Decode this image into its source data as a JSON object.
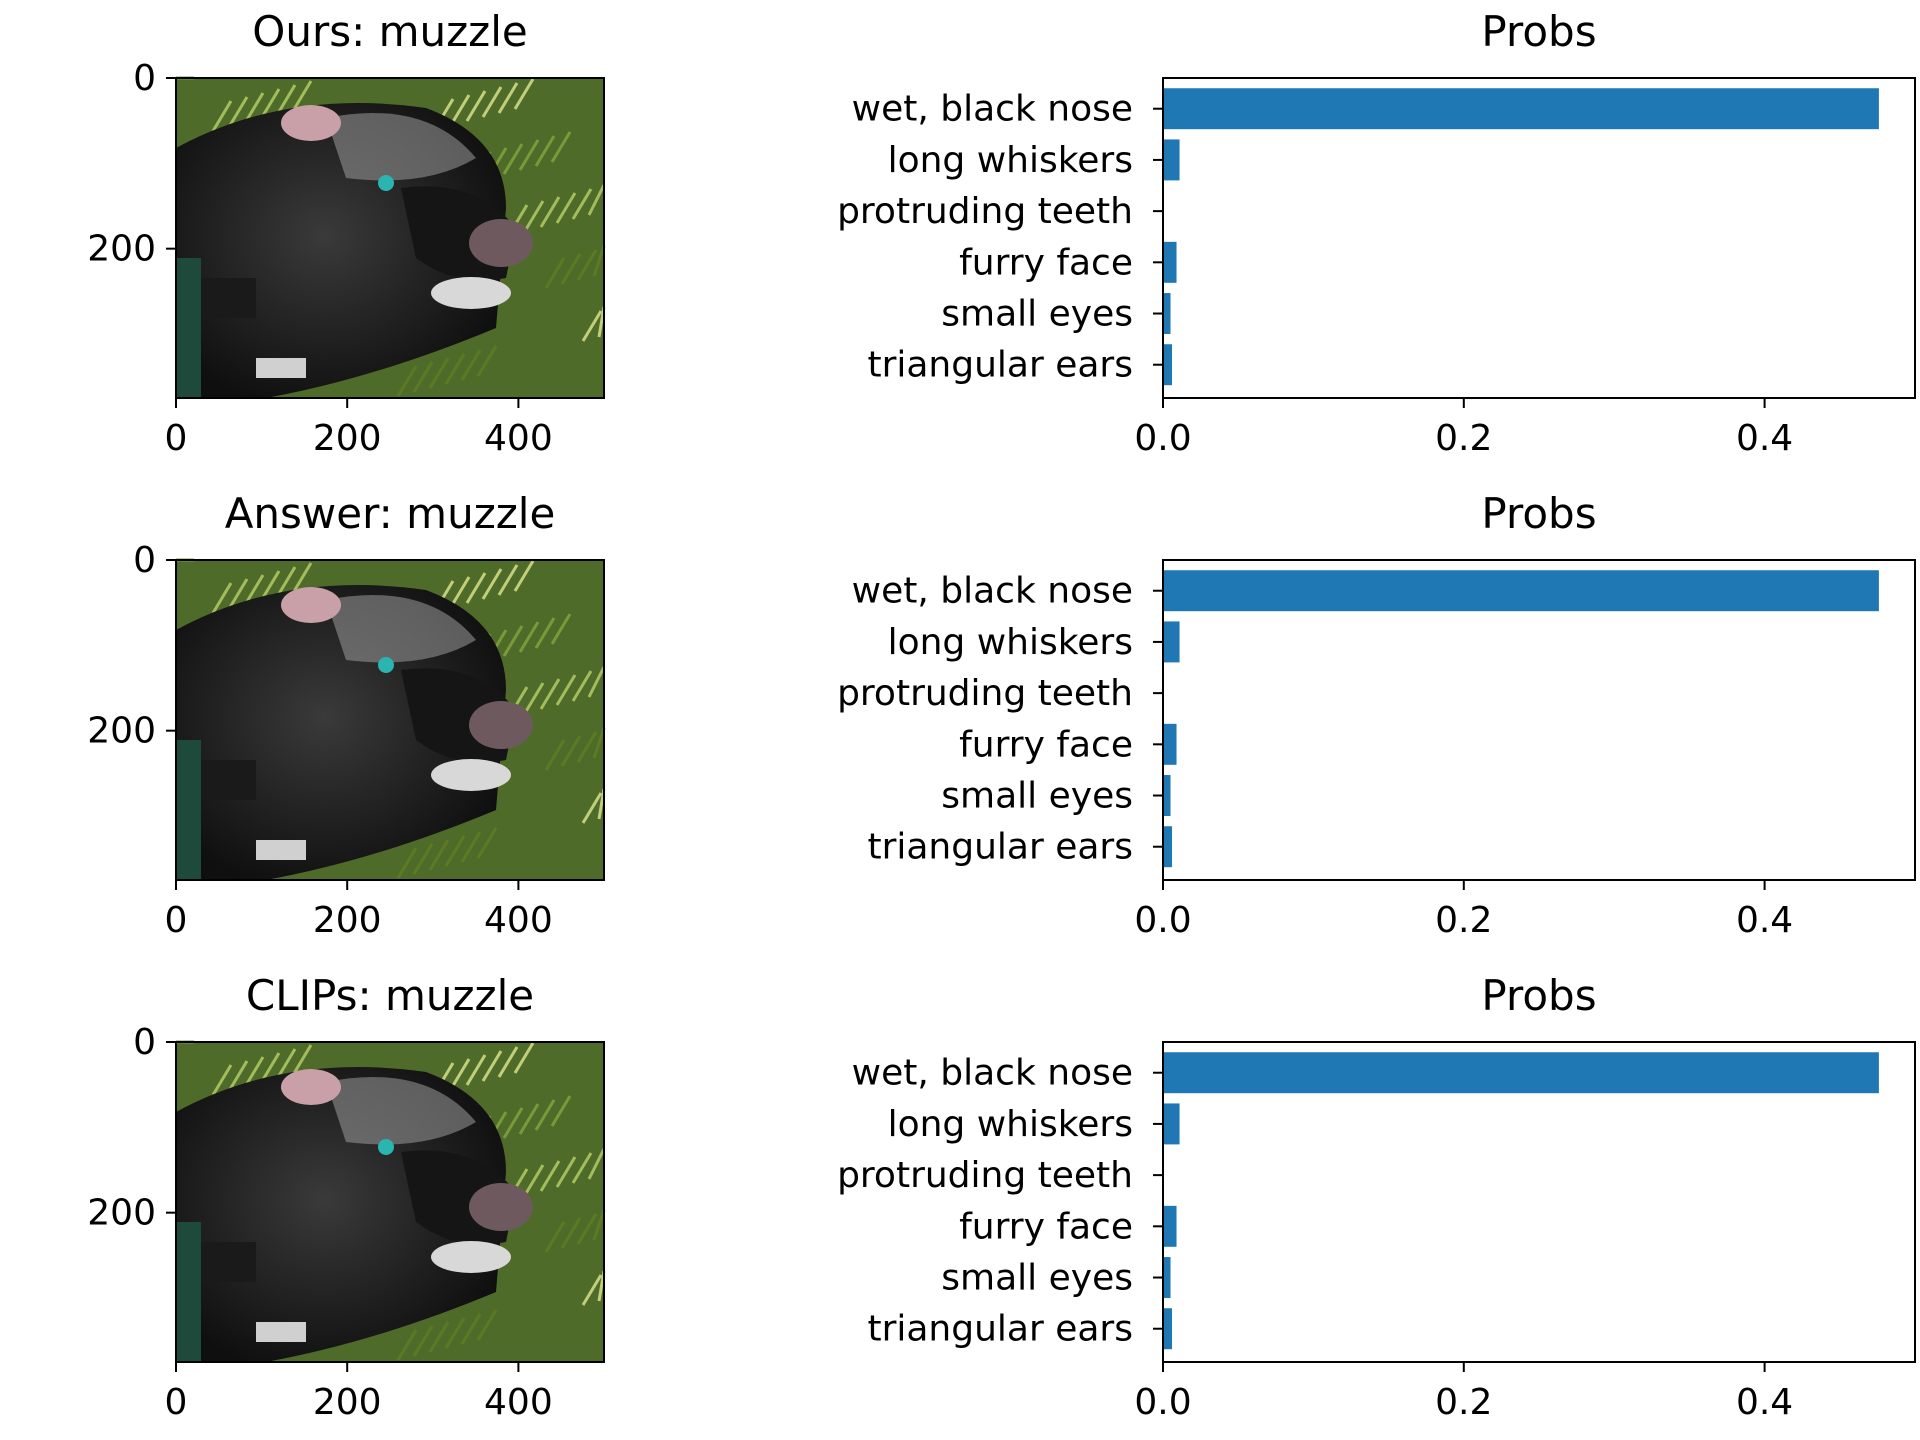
{
  "figure": {
    "rows": [
      {
        "image_panel": {
          "title": "Ours: muzzle",
          "content": "photo of a black dog wearing a muzzle lying in grass"
        },
        "image_axes": {
          "xticks": [
            "0",
            "200",
            "400"
          ],
          "yticks": [
            "0",
            "200"
          ]
        }
      },
      {
        "image_panel": {
          "title": "Answer: muzzle",
          "content": "photo of a black dog wearing a muzzle lying in grass"
        },
        "image_axes": {
          "xticks": [
            "0",
            "200",
            "400"
          ],
          "yticks": [
            "0",
            "200"
          ]
        }
      },
      {
        "image_panel": {
          "title": "CLIPs: muzzle",
          "content": "photo of a black dog wearing a muzzle lying in grass"
        },
        "image_axes": {
          "xticks": [
            "0",
            "200",
            "400"
          ],
          "yticks": [
            "0",
            "200"
          ]
        }
      }
    ]
  },
  "colors": {
    "bar": "#1f77b4",
    "axis": "#000000",
    "background": "#ffffff"
  },
  "chart_data": [
    {
      "type": "bar",
      "orientation": "horizontal",
      "title": "Probs",
      "categories": [
        "wet, black nose",
        "long whiskers",
        "protruding teeth",
        "furry face",
        "small eyes",
        "triangular ears"
      ],
      "values": [
        0.476,
        0.011,
        0.0,
        0.009,
        0.005,
        0.006
      ],
      "xlim": [
        0,
        0.5
      ],
      "xticks": [
        "0.0",
        "0.2",
        "0.4"
      ]
    },
    {
      "type": "bar",
      "orientation": "horizontal",
      "title": "Probs",
      "categories": [
        "wet, black nose",
        "long whiskers",
        "protruding teeth",
        "furry face",
        "small eyes",
        "triangular ears"
      ],
      "values": [
        0.476,
        0.011,
        0.0,
        0.009,
        0.005,
        0.006
      ],
      "xlim": [
        0,
        0.5
      ],
      "xticks": [
        "0.0",
        "0.2",
        "0.4"
      ]
    },
    {
      "type": "bar",
      "orientation": "horizontal",
      "title": "Probs",
      "categories": [
        "wet, black nose",
        "long whiskers",
        "protruding teeth",
        "furry face",
        "small eyes",
        "triangular ears"
      ],
      "values": [
        0.476,
        0.011,
        0.0,
        0.009,
        0.005,
        0.006
      ],
      "xlim": [
        0,
        0.5
      ],
      "xticks": [
        "0.0",
        "0.2",
        "0.4"
      ]
    }
  ]
}
